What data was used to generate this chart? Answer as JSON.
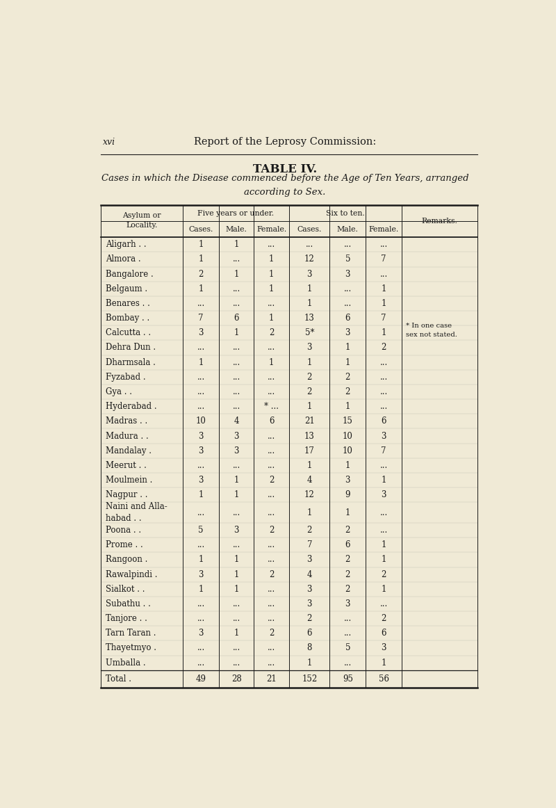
{
  "bg_color": "#f0ead6",
  "page_header_left": "xvi",
  "page_header_center": "Report of the Leprosy Commission:",
  "table_title": "TABLE IV.",
  "table_subtitle": "Cases in which the Disease commenced before the Age of Ten Years, arranged\naccording to Sex.",
  "rows": [
    [
      "Aligarh . .",
      "1",
      "1",
      "...",
      "...",
      "...",
      "...",
      ""
    ],
    [
      "Almora .",
      "1",
      "...",
      "1",
      "12",
      "5",
      "7",
      ""
    ],
    [
      "Bangalore .",
      "2",
      "1",
      "1",
      "3",
      "3",
      "...",
      ""
    ],
    [
      "Belgaum .",
      "1",
      "...",
      "1",
      "1",
      "...",
      "1",
      ""
    ],
    [
      "Benares . .",
      "...",
      "...",
      "...",
      "1",
      "...",
      "1",
      ""
    ],
    [
      "Bombay . .",
      "7",
      "6",
      "1",
      "13",
      "6",
      "7",
      ""
    ],
    [
      "Calcutta . .",
      "3",
      "1",
      "2",
      "5*",
      "3",
      "1",
      "* In one case\nsex not stated."
    ],
    [
      "Dehra Dun .",
      "...",
      "...",
      "...",
      "3",
      "1",
      "2",
      ""
    ],
    [
      "Dharmsala .",
      "1",
      "...",
      "1",
      "1",
      "1",
      "...",
      ""
    ],
    [
      "Fyzabad .",
      "...",
      "...",
      "...",
      "2",
      "2",
      "...",
      ""
    ],
    [
      "Gya . .",
      "...",
      "...",
      "...",
      "2",
      "2",
      "...",
      ""
    ],
    [
      "Hyderabad .",
      "...",
      "...",
      "* ...",
      "1",
      "1",
      "...",
      ""
    ],
    [
      "Madras . .",
      "10",
      "4",
      "6",
      "21",
      "15",
      "6",
      ""
    ],
    [
      "Madura . .",
      "3",
      "3",
      "...",
      "13",
      "10",
      "3",
      ""
    ],
    [
      "Mandalay .",
      "3",
      "3",
      "...",
      "17",
      "10",
      "7",
      ""
    ],
    [
      "Meerut . .",
      "...",
      "...",
      "...",
      "1",
      "1",
      "...",
      ""
    ],
    [
      "Moulmein .",
      "3",
      "1",
      "2",
      "4",
      "3",
      "1",
      ""
    ],
    [
      "Nagpur . .",
      "1",
      "1",
      "...",
      "12",
      "9",
      "3",
      ""
    ],
    [
      "Naini and Alla-\nhabad . .",
      "...",
      "...",
      "...",
      "1",
      "1",
      "...",
      ""
    ],
    [
      "Poona . .",
      "5",
      "3",
      "2",
      "2",
      "2",
      "...",
      ""
    ],
    [
      "Prome . .",
      "...",
      "...",
      "...",
      "7",
      "6",
      "1",
      ""
    ],
    [
      "Rangoon .",
      "1",
      "1",
      "...",
      "3",
      "2",
      "1",
      ""
    ],
    [
      "Rawalpindi .",
      "3",
      "1",
      "2",
      "4",
      "2",
      "2",
      ""
    ],
    [
      "Sialkot . .",
      "1",
      "1",
      "...",
      "3",
      "2",
      "1",
      ""
    ],
    [
      "Subathu . .",
      "...",
      "...",
      "...",
      "3",
      "3",
      "...",
      ""
    ],
    [
      "Tanjore . .",
      "...",
      "...",
      "...",
      "2",
      "...",
      "2",
      ""
    ],
    [
      "Tarn Taran .",
      "3",
      "1",
      "2",
      "6",
      "...",
      "6",
      ""
    ],
    [
      "Thayetmyo .",
      "...",
      "...",
      "...",
      "8",
      "5",
      "3",
      ""
    ],
    [
      "Umballa .",
      "...",
      "...",
      "...",
      "1",
      "...",
      "1",
      ""
    ]
  ],
  "total_row": [
    "Total .",
    "49",
    "28",
    "21",
    "152",
    "95",
    "56",
    ""
  ]
}
